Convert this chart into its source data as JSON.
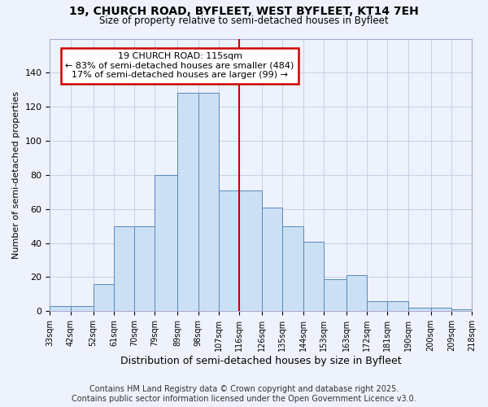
{
  "title1": "19, CHURCH ROAD, BYFLEET, WEST BYFLEET, KT14 7EH",
  "title2": "Size of property relative to semi-detached houses in Byfleet",
  "xlabel": "Distribution of semi-detached houses by size in Byfleet",
  "ylabel": "Number of semi-detached properties",
  "annotation_line1": "19 CHURCH ROAD: 115sqm",
  "annotation_line2": "← 83% of semi-detached houses are smaller (484)",
  "annotation_line3": "17% of semi-detached houses are larger (99) →",
  "bin_edges": [
    33,
    42,
    52,
    61,
    70,
    79,
    89,
    98,
    107,
    116,
    126,
    135,
    144,
    153,
    163,
    172,
    181,
    190,
    200,
    209,
    218
  ],
  "bin_labels": [
    "33sqm",
    "42sqm",
    "52sqm",
    "61sqm",
    "70sqm",
    "79sqm",
    "89sqm",
    "98sqm",
    "107sqm",
    "116sqm",
    "126sqm",
    "135sqm",
    "144sqm",
    "153sqm",
    "163sqm",
    "172sqm",
    "181sqm",
    "190sqm",
    "200sqm",
    "209sqm",
    "218sqm"
  ],
  "counts": [
    3,
    3,
    16,
    50,
    50,
    80,
    128,
    128,
    71,
    71,
    61,
    50,
    41,
    19,
    21,
    6,
    6,
    2,
    2,
    1
  ],
  "bar_color": "#cce0f5",
  "bar_edge_color": "#5588bb",
  "vline_color": "#cc0000",
  "vline_x": 116,
  "annotation_box_color": "#ffffff",
  "annotation_box_edge": "#cc0000",
  "grid_color": "#c8d0e8",
  "background_color": "#eef2fc",
  "footer_text": "Contains HM Land Registry data © Crown copyright and database right 2025.\nContains public sector information licensed under the Open Government Licence v3.0.",
  "ylim": [
    0,
    160
  ],
  "yticks": [
    0,
    20,
    40,
    60,
    80,
    100,
    120,
    140
  ]
}
